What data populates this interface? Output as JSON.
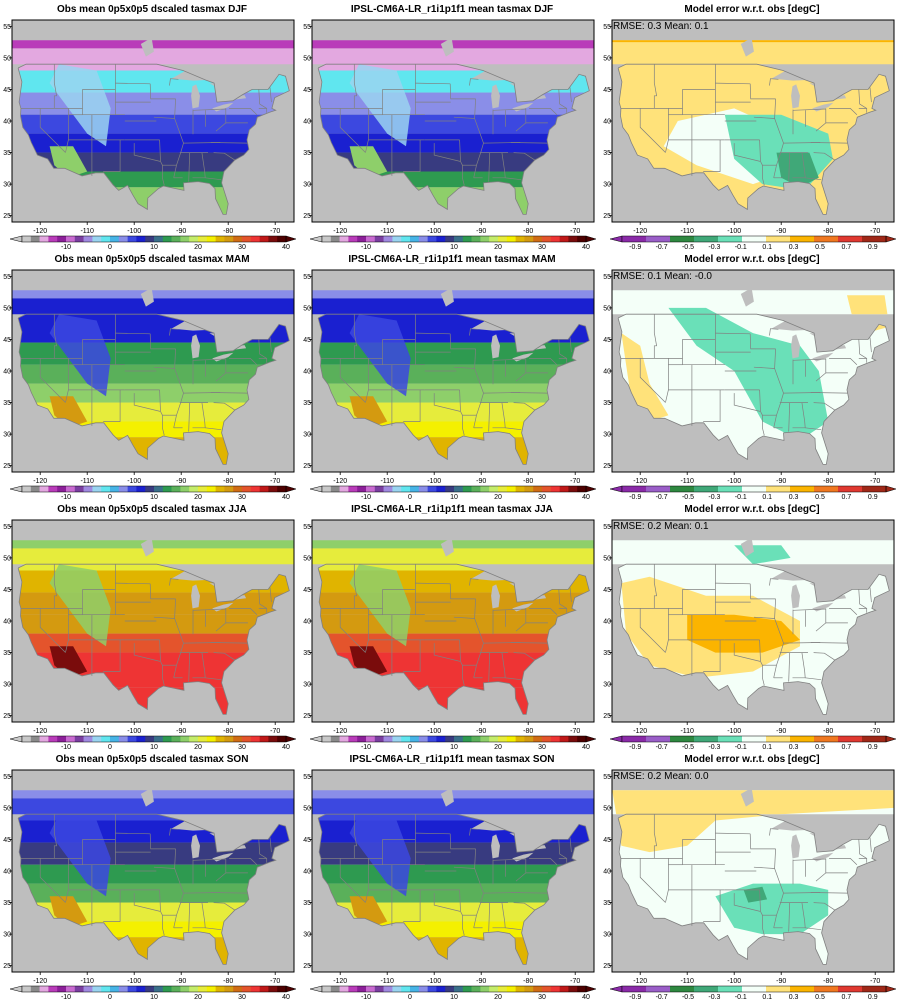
{
  "figure": {
    "rows": [
      {
        "season": "DJF",
        "titles": [
          "Obs mean 0p5x0p5 dscaled tasmax DJF",
          "IPSL-CM6A-LR_r1i1p1f1 mean tasmax DJF",
          "Model error w.r.t. obs [degC]"
        ],
        "stats": {
          "rmse_label": "RMSE:",
          "rmse": "0.3",
          "mean_label": "Mean:",
          "mean": "0.1"
        }
      },
      {
        "season": "MAM",
        "titles": [
          "Obs mean 0p5x0p5 dscaled tasmax MAM",
          "IPSL-CM6A-LR_r1i1p1f1 mean tasmax MAM",
          "Model error w.r.t. obs [degC]"
        ],
        "stats": {
          "rmse_label": "RMSE:",
          "rmse": "0.1",
          "mean_label": "Mean:",
          "mean": "-0.0"
        }
      },
      {
        "season": "JJA",
        "titles": [
          "Obs mean 0p5x0p5 dscaled tasmax JJA",
          "IPSL-CM6A-LR_r1i1p1f1 mean tasmax JJA",
          "Model error w.r.t. obs [degC]"
        ],
        "stats": {
          "rmse_label": "RMSE:",
          "rmse": "0.2",
          "mean_label": "Mean:",
          "mean": "0.1"
        }
      },
      {
        "season": "SON",
        "titles": [
          "Obs mean 0p5x0p5 dscaled tasmax SON",
          "IPSL-CM6A-LR_r1i1p1f1 mean tasmax SON",
          "Model error w.r.t. obs [degC]"
        ],
        "stats": {
          "rmse_label": "RMSE:",
          "rmse": "0.2",
          "mean_label": "Mean:",
          "mean": "0.0"
        }
      }
    ],
    "map_axes": {
      "lon_ticks": [
        -120,
        -110,
        -100,
        -90,
        -80,
        -70
      ],
      "lat_ticks": [
        25,
        30,
        35,
        40,
        45,
        50,
        55
      ],
      "lon_range": [
        -126,
        -66
      ],
      "lat_range": [
        24,
        56
      ]
    },
    "abs_colorbar": {
      "ticks": [
        "-10",
        "0",
        "10",
        "20",
        "30",
        "40"
      ],
      "colors": [
        "#c8c8c8",
        "#8a8a8a",
        "#e3a8e0",
        "#b93bb9",
        "#8c1f99",
        "#c96ad1",
        "#7a3ea0",
        "#a08ae0",
        "#9ad4f0",
        "#60e6ef",
        "#46b4e6",
        "#8a8ee8",
        "#3c48e0",
        "#1a20d0",
        "#383b80",
        "#3a6f8a",
        "#2e9a50",
        "#5ab05a",
        "#8ecf6a",
        "#c4ec6a",
        "#e6ec3c",
        "#f4f000",
        "#e0b400",
        "#d49a10",
        "#d06c14",
        "#e4542c",
        "#ee3434",
        "#c01818",
        "#7a0c0c",
        "#4e0000"
      ]
    },
    "diff_colorbar": {
      "ticks": [
        "-0.9",
        "-0.7",
        "-0.5",
        "-0.3",
        "-0.1",
        "0.1",
        "0.3",
        "0.5",
        "0.7",
        "0.9"
      ],
      "colors": [
        "#8a2aa8",
        "#9a5ec8",
        "#2e8840",
        "#40a878",
        "#6ae0b8",
        "#f4fff8",
        "#ffe27a",
        "#fbb400",
        "#f07820",
        "#e03830",
        "#a02818"
      ]
    },
    "colors": {
      "missing": "#bebebe",
      "lake": "#bebebe",
      "border": "#808080"
    }
  }
}
